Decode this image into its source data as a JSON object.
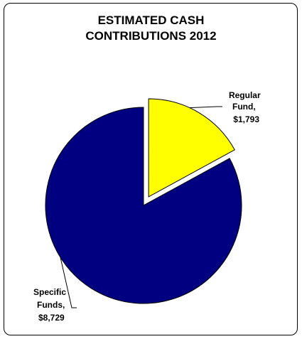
{
  "chart_data": {
    "type": "pie",
    "title_lines": [
      "ESTIMATED CASH",
      "CONTRIBUTIONS 2012"
    ],
    "slices": [
      {
        "label_lines": [
          "Regular",
          "Fund,",
          "$1,793"
        ],
        "value": 1793,
        "color": "#FFFF00",
        "exploded": true
      },
      {
        "label_lines": [
          "Specific",
          "Funds,",
          "$8,729"
        ],
        "value": 8729,
        "color": "#000080",
        "exploded": false
      }
    ],
    "legend": "none"
  }
}
